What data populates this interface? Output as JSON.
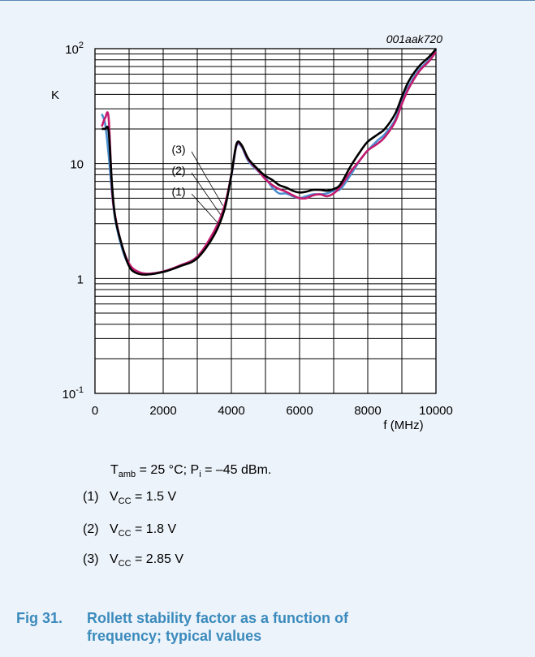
{
  "chart_data": {
    "type": "line",
    "code": "001aak720",
    "ylabel": "K",
    "xlabel": "f (MHz)",
    "xlim": [
      0,
      10000
    ],
    "ylim": [
      0.1,
      100
    ],
    "y_scale": "log",
    "grid": true,
    "x_ticks": [
      "0",
      "2000",
      "4000",
      "6000",
      "8000",
      "10000"
    ],
    "y_tick_labels": [
      {
        "base": "10",
        "sup": "2",
        "value": 100
      },
      {
        "base": "10",
        "sup": "",
        "value": 10
      },
      {
        "base": "1",
        "sup": "",
        "value": 1
      },
      {
        "base": "10",
        "sup": "-1",
        "value": 0.1
      }
    ],
    "curve_labels": [
      "(3)",
      "(2)",
      "(1)"
    ],
    "series": [
      {
        "name": "(1)",
        "color": "#4a8fd0",
        "x": [
          200,
          300,
          400,
          500,
          600,
          800,
          1000,
          1200,
          1500,
          2000,
          2500,
          3000,
          3500,
          3800,
          4000,
          4150,
          4300,
          4500,
          4800,
          5000,
          5200,
          5400,
          5600,
          5800,
          6000,
          6200,
          6400,
          6600,
          6800,
          7000,
          7200,
          7500,
          7800,
          8000,
          8300,
          8500,
          8800,
          9000,
          9200,
          9500,
          9800,
          10000
        ],
        "y": [
          27,
          22,
          12,
          5.5,
          3.2,
          1.8,
          1.3,
          1.17,
          1.1,
          1.15,
          1.3,
          1.55,
          2.5,
          4.2,
          7.8,
          14.2,
          14.0,
          10.5,
          8.5,
          7.5,
          6.2,
          5.5,
          5.5,
          5.2,
          5.0,
          5.2,
          5.4,
          5.4,
          5.5,
          5.8,
          6.0,
          8,
          11,
          13,
          16,
          18,
          24,
          35,
          47,
          65,
          80,
          95
        ]
      },
      {
        "name": "(2)",
        "color": "#c41a6e",
        "x": [
          200,
          300,
          400,
          500,
          600,
          800,
          1000,
          1200,
          1500,
          2000,
          2500,
          3000,
          3500,
          3800,
          4000,
          4150,
          4300,
          4500,
          4800,
          5000,
          5200,
          5400,
          5600,
          5800,
          6000,
          6200,
          6400,
          6600,
          6800,
          7000,
          7200,
          7500,
          7800,
          8000,
          8300,
          8500,
          8800,
          9000,
          9200,
          9500,
          9800,
          10000
        ],
        "y": [
          21,
          25,
          25,
          6,
          3.4,
          1.9,
          1.35,
          1.17,
          1.1,
          1.15,
          1.3,
          1.55,
          2.6,
          4.3,
          8,
          14.5,
          14.3,
          10.8,
          8.6,
          7.3,
          6.5,
          6.0,
          5.7,
          5.3,
          5.0,
          5.0,
          5.3,
          5.4,
          5.2,
          5.5,
          6.3,
          8.5,
          11,
          13,
          15,
          17,
          23,
          33,
          45,
          63,
          78,
          94
        ]
      },
      {
        "name": "(3)",
        "color": "#000000",
        "x": [
          200,
          300,
          400,
          500,
          600,
          800,
          1000,
          1200,
          1500,
          2000,
          2500,
          3000,
          3500,
          3800,
          4000,
          4150,
          4300,
          4500,
          4800,
          5000,
          5200,
          5400,
          5600,
          5800,
          6000,
          6200,
          6400,
          6600,
          6800,
          7000,
          7200,
          7500,
          7800,
          8000,
          8300,
          8500,
          8800,
          9000,
          9200,
          9500,
          9800,
          10000
        ],
        "y": [
          20,
          20,
          19,
          6.5,
          3.3,
          1.9,
          1.28,
          1.12,
          1.08,
          1.14,
          1.28,
          1.5,
          2.4,
          4.0,
          8,
          14.8,
          14.5,
          11,
          8.8,
          7.8,
          7.2,
          6.5,
          6.2,
          5.8,
          5.6,
          5.7,
          5.9,
          5.9,
          5.8,
          6.0,
          6.6,
          9.5,
          13,
          15.5,
          18,
          20,
          27,
          38,
          52,
          70,
          85,
          99
        ]
      }
    ]
  },
  "conditions": {
    "line1": {
      "t": "T",
      "t_sub": "amb",
      "t_rest": " = 25 °C; P",
      "p_sub": "i",
      "p_rest": " = –45 dBm."
    },
    "items": [
      {
        "num": "(1)",
        "v": "V",
        "sub": "CC",
        "rest": " = 1.5 V"
      },
      {
        "num": "(2)",
        "v": "V",
        "sub": "CC",
        "rest": " = 1.8 V"
      },
      {
        "num": "(3)",
        "v": "V",
        "sub": "CC",
        "rest": " = 2.85 V"
      }
    ]
  },
  "caption": {
    "fig": "Fig 31.",
    "line1": "Rollett stability factor as a function of",
    "line2": "frequency; typical values"
  }
}
